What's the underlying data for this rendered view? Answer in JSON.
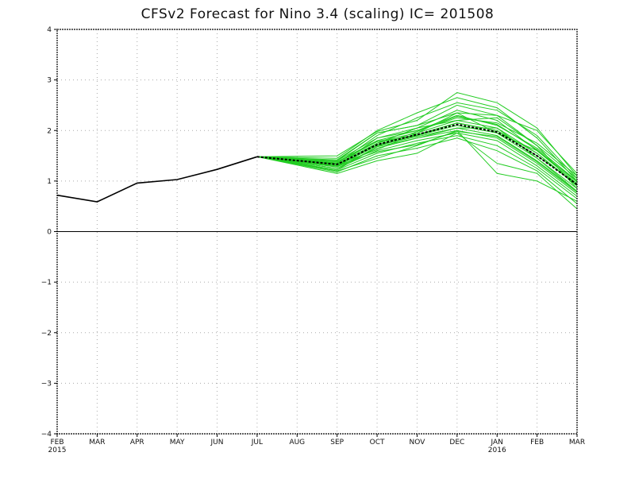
{
  "chart_data": {
    "type": "line",
    "title": "CFSv2 Forecast for Nino 3.4 (scaling)  IC= 201508",
    "xlabel": "",
    "ylabel": "",
    "ylim": [
      -4,
      4
    ],
    "yticks": [
      "−4",
      "−3",
      "−2",
      "−1",
      "0",
      "1",
      "2",
      "3",
      "4"
    ],
    "x_tick_labels": [
      "FEB",
      "MAR",
      "APR",
      "MAY",
      "JUN",
      "JUL",
      "AUG",
      "SEP",
      "OCT",
      "NOV",
      "DEC",
      "JAN",
      "FEB",
      "MAR"
    ],
    "x_year_labels": [
      {
        "index": 0,
        "label": "2015"
      },
      {
        "index": 11,
        "label": "2016"
      }
    ],
    "grid": true,
    "zero_line": true,
    "colors": {
      "observed": "#000000",
      "members": "#22cc22",
      "ensemble_mean": "#000000",
      "grid": "#aaaaaa"
    },
    "series": [
      {
        "style": "solid",
        "x_index": [
          0,
          1,
          2,
          3,
          4,
          5
        ],
        "values": [
          0.72,
          0.59,
          0.96,
          1.03,
          1.23,
          1.48
        ]
      },
      {
        "style": "dashed",
        "x_index": [
          5,
          7,
          8,
          9,
          10,
          11,
          12,
          13
        ],
        "values": [
          1.48,
          1.33,
          1.72,
          1.92,
          2.12,
          1.97,
          1.5,
          0.93
        ]
      }
    ],
    "members": [
      {
        "x_index": [
          5,
          7,
          8,
          9,
          10,
          11,
          12,
          13
        ],
        "values": [
          1.48,
          1.5,
          1.98,
          2.2,
          2.75,
          2.55,
          2.05,
          1.1
        ]
      },
      {
        "x_index": [
          5,
          7,
          8,
          9,
          10,
          11,
          12,
          13
        ],
        "values": [
          1.48,
          1.45,
          2.0,
          2.35,
          2.65,
          2.45,
          1.85,
          1.0
        ]
      },
      {
        "x_index": [
          5,
          7,
          8,
          9,
          10,
          11,
          12,
          13
        ],
        "values": [
          1.48,
          1.42,
          1.95,
          2.1,
          2.5,
          2.3,
          1.7,
          1.05
        ]
      },
      {
        "x_index": [
          5,
          7,
          8,
          9,
          10,
          11,
          12,
          13
        ],
        "values": [
          1.48,
          1.4,
          1.85,
          2.05,
          2.4,
          2.2,
          1.6,
          0.95
        ]
      },
      {
        "x_index": [
          5,
          7,
          8,
          9,
          10,
          11,
          12,
          13
        ],
        "values": [
          1.48,
          1.38,
          1.8,
          2.0,
          2.3,
          2.1,
          1.65,
          1.0
        ]
      },
      {
        "x_index": [
          5,
          7,
          8,
          9,
          10,
          11,
          12,
          13
        ],
        "values": [
          1.48,
          1.36,
          1.78,
          1.95,
          2.2,
          2.05,
          1.55,
          0.9
        ]
      },
      {
        "x_index": [
          5,
          7,
          8,
          9,
          10,
          11,
          12,
          13
        ],
        "values": [
          1.48,
          1.34,
          1.75,
          1.92,
          2.15,
          2.0,
          1.5,
          0.95
        ]
      },
      {
        "x_index": [
          5,
          7,
          8,
          9,
          10,
          11,
          12,
          13
        ],
        "values": [
          1.48,
          1.32,
          1.72,
          1.9,
          2.1,
          1.95,
          1.45,
          0.85
        ]
      },
      {
        "x_index": [
          5,
          7,
          8,
          9,
          10,
          11,
          12,
          13
        ],
        "values": [
          1.48,
          1.3,
          1.7,
          1.88,
          2.05,
          1.9,
          1.4,
          0.8
        ]
      },
      {
        "x_index": [
          5,
          7,
          8,
          9,
          10,
          11,
          12,
          13
        ],
        "values": [
          1.48,
          1.28,
          1.65,
          1.85,
          2.0,
          1.85,
          1.35,
          0.75
        ]
      },
      {
        "x_index": [
          5,
          7,
          8,
          9,
          10,
          11,
          12,
          13
        ],
        "values": [
          1.48,
          1.25,
          1.6,
          1.8,
          1.95,
          1.8,
          1.3,
          0.7
        ]
      },
      {
        "x_index": [
          5,
          7,
          8,
          9,
          10,
          11,
          12,
          13
        ],
        "values": [
          1.48,
          1.22,
          1.55,
          1.75,
          1.9,
          1.7,
          1.25,
          0.65
        ]
      },
      {
        "x_index": [
          5,
          7,
          8,
          9,
          10,
          11,
          12,
          13
        ],
        "values": [
          1.48,
          1.18,
          1.5,
          1.65,
          1.85,
          1.6,
          1.2,
          0.55
        ]
      },
      {
        "x_index": [
          5,
          7,
          8,
          9,
          10,
          11,
          12,
          13
        ],
        "values": [
          1.48,
          1.15,
          1.4,
          1.55,
          1.95,
          1.35,
          1.15,
          0.45
        ]
      },
      {
        "x_index": [
          5,
          7,
          8,
          9,
          10,
          11,
          12,
          13
        ],
        "values": [
          1.48,
          1.2,
          1.45,
          1.7,
          2.0,
          1.15,
          1.0,
          0.6
        ]
      },
      {
        "x_index": [
          5,
          7,
          8,
          9,
          10,
          11,
          12,
          13
        ],
        "values": [
          1.48,
          1.4,
          1.95,
          2.1,
          2.35,
          2.3,
          2.0,
          1.15
        ]
      },
      {
        "x_index": [
          5,
          7,
          8,
          9,
          10,
          11,
          12,
          13
        ],
        "values": [
          1.48,
          1.35,
          1.9,
          2.25,
          2.55,
          2.4,
          1.9,
          1.05
        ]
      },
      {
        "x_index": [
          5,
          7,
          8,
          9,
          10,
          11,
          12,
          13
        ],
        "values": [
          1.48,
          1.3,
          1.85,
          2.0,
          2.25,
          2.15,
          1.75,
          1.1
        ]
      },
      {
        "x_index": [
          5,
          7,
          8,
          9,
          10,
          11,
          12,
          13
        ],
        "values": [
          1.48,
          1.28,
          1.75,
          2.05,
          2.2,
          2.25,
          1.7,
          0.85
        ]
      },
      {
        "x_index": [
          5,
          7,
          8,
          9,
          10,
          11,
          12,
          13
        ],
        "values": [
          1.48,
          1.25,
          1.68,
          1.85,
          2.05,
          2.05,
          1.45,
          0.8
        ]
      },
      {
        "x_index": [
          5,
          7,
          8,
          9,
          10,
          11,
          12,
          13
        ],
        "values": [
          1.48,
          1.33,
          1.62,
          1.95,
          2.35,
          1.95,
          1.6,
          1.0
        ]
      },
      {
        "x_index": [
          5,
          7,
          8,
          9,
          10,
          11,
          12,
          13
        ],
        "values": [
          1.48,
          1.38,
          1.78,
          1.9,
          2.15,
          2.0,
          1.55,
          0.92
        ]
      },
      {
        "x_index": [
          5,
          7,
          8,
          9,
          10,
          11,
          12,
          13
        ],
        "values": [
          1.48,
          1.3,
          1.58,
          1.72,
          1.98,
          1.88,
          1.38,
          0.78
        ]
      },
      {
        "x_index": [
          5,
          7,
          8,
          9,
          10,
          11,
          12,
          13
        ],
        "values": [
          1.48,
          1.22,
          1.68,
          1.98,
          2.28,
          2.12,
          1.62,
          0.98
        ]
      }
    ]
  }
}
